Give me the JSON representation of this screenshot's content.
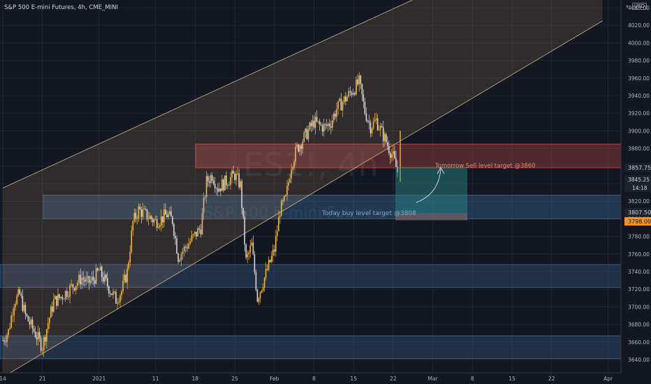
{
  "header": {
    "title": "S&P 500 E-mini Futures, 4h, CME_MINI",
    "currency": "USD",
    "currency_arrow": "▾"
  },
  "watermark": {
    "symbol": "ES1!, 4h",
    "name": "S&P 500 E-mini Futures"
  },
  "annotations": {
    "sell": "Tomorrow Sell level target @3860",
    "buy": "Today buy level target @3808"
  },
  "price_labels": {
    "last": "3857.75",
    "current": "3845.25",
    "countdown": "14:18",
    "low_level": "3807.50",
    "high_level": "3798.00"
  },
  "colors": {
    "background": "#131722",
    "up": "#f0b740",
    "text": "#b2b5be",
    "sell_text": "#e08a5a",
    "buy_text": "#6fb0d6",
    "zone_red": "#c44b4b",
    "zone_blue": "#3a6a9c",
    "channel": "#c8b98a"
  },
  "chart_data": {
    "type": "candlestick",
    "title": "S&P 500 E-mini Futures, 4h, CME_MINI",
    "x_tick_labels": [
      "14",
      "21",
      "2021",
      "11",
      "18",
      "25",
      "Feb",
      "8",
      "15",
      "22",
      "Mar",
      "8",
      "15",
      "22",
      "Apr"
    ],
    "y_tick_labels": [
      3640,
      3660,
      3680,
      3700,
      3720,
      3740,
      3760,
      3780,
      3800,
      3820,
      3840,
      3860,
      3880,
      3900,
      3920,
      3940,
      3960,
      3980,
      4000,
      4020,
      4040
    ],
    "ylim": [
      3625,
      4060
    ],
    "close_path": [
      [
        "Dec 14",
        3662
      ],
      [
        "Dec 15",
        3672
      ],
      [
        "Dec 16",
        3706
      ],
      [
        "Dec 17",
        3714
      ],
      [
        "Dec 18",
        3690
      ],
      [
        "Dec 21",
        3655
      ],
      [
        "Dec 22",
        3682
      ],
      [
        "Dec 23",
        3706
      ],
      [
        "Dec 24",
        3710
      ],
      [
        "Dec 28",
        3733
      ],
      [
        "Dec 29",
        3727
      ],
      [
        "Dec 30",
        3731
      ],
      [
        "Dec 31",
        3741
      ],
      [
        "Jan 4",
        3708
      ],
      [
        "Jan 5",
        3718
      ],
      [
        "Jan 6",
        3740
      ],
      [
        "Jan 7",
        3796
      ],
      [
        "Jan 8",
        3810
      ],
      [
        "Jan 11",
        3797
      ],
      [
        "Jan 12",
        3800
      ],
      [
        "Jan 13",
        3805
      ],
      [
        "Jan 14",
        3798
      ],
      [
        "Jan 15",
        3757
      ],
      [
        "Jan 19",
        3790
      ],
      [
        "Jan 20",
        3842
      ],
      [
        "Jan 21",
        3850
      ],
      [
        "Jan 22",
        3835
      ],
      [
        "Jan 25",
        3850
      ],
      [
        "Jan 26",
        3838
      ],
      [
        "Jan 27",
        3752
      ],
      [
        "Jan 28",
        3770
      ],
      [
        "Jan 29",
        3710
      ],
      [
        "Feb 1",
        3765
      ],
      [
        "Feb 2",
        3810
      ],
      [
        "Feb 3",
        3822
      ],
      [
        "Feb 4",
        3862
      ],
      [
        "Feb 5",
        3880
      ],
      [
        "Feb 8",
        3910
      ],
      [
        "Feb 9",
        3906
      ],
      [
        "Feb 10",
        3904
      ],
      [
        "Feb 11",
        3910
      ],
      [
        "Feb 12",
        3925
      ],
      [
        "Feb 16",
        3955
      ],
      [
        "Feb 17",
        3922
      ],
      [
        "Feb 18",
        3905
      ],
      [
        "Feb 19",
        3912
      ],
      [
        "Feb 22",
        3870
      ],
      [
        "Feb 23",
        3848
      ]
    ],
    "channel": {
      "upper": [
        [
          "Dec 14",
          3835
        ],
        [
          "Mar 31",
          4148
        ]
      ],
      "lower": [
        [
          "Dec 14",
          3620
        ],
        [
          "Mar 31",
          4025
        ]
      ]
    },
    "zones": [
      {
        "name": "sell zone",
        "low": 3858,
        "high": 3885
      },
      {
        "name": "buy zone",
        "low": 3800,
        "high": 3827
      },
      {
        "name": "support zone 1",
        "low": 3722,
        "high": 3748
      },
      {
        "name": "support zone 2",
        "low": 3641,
        "high": 3667
      }
    ]
  }
}
